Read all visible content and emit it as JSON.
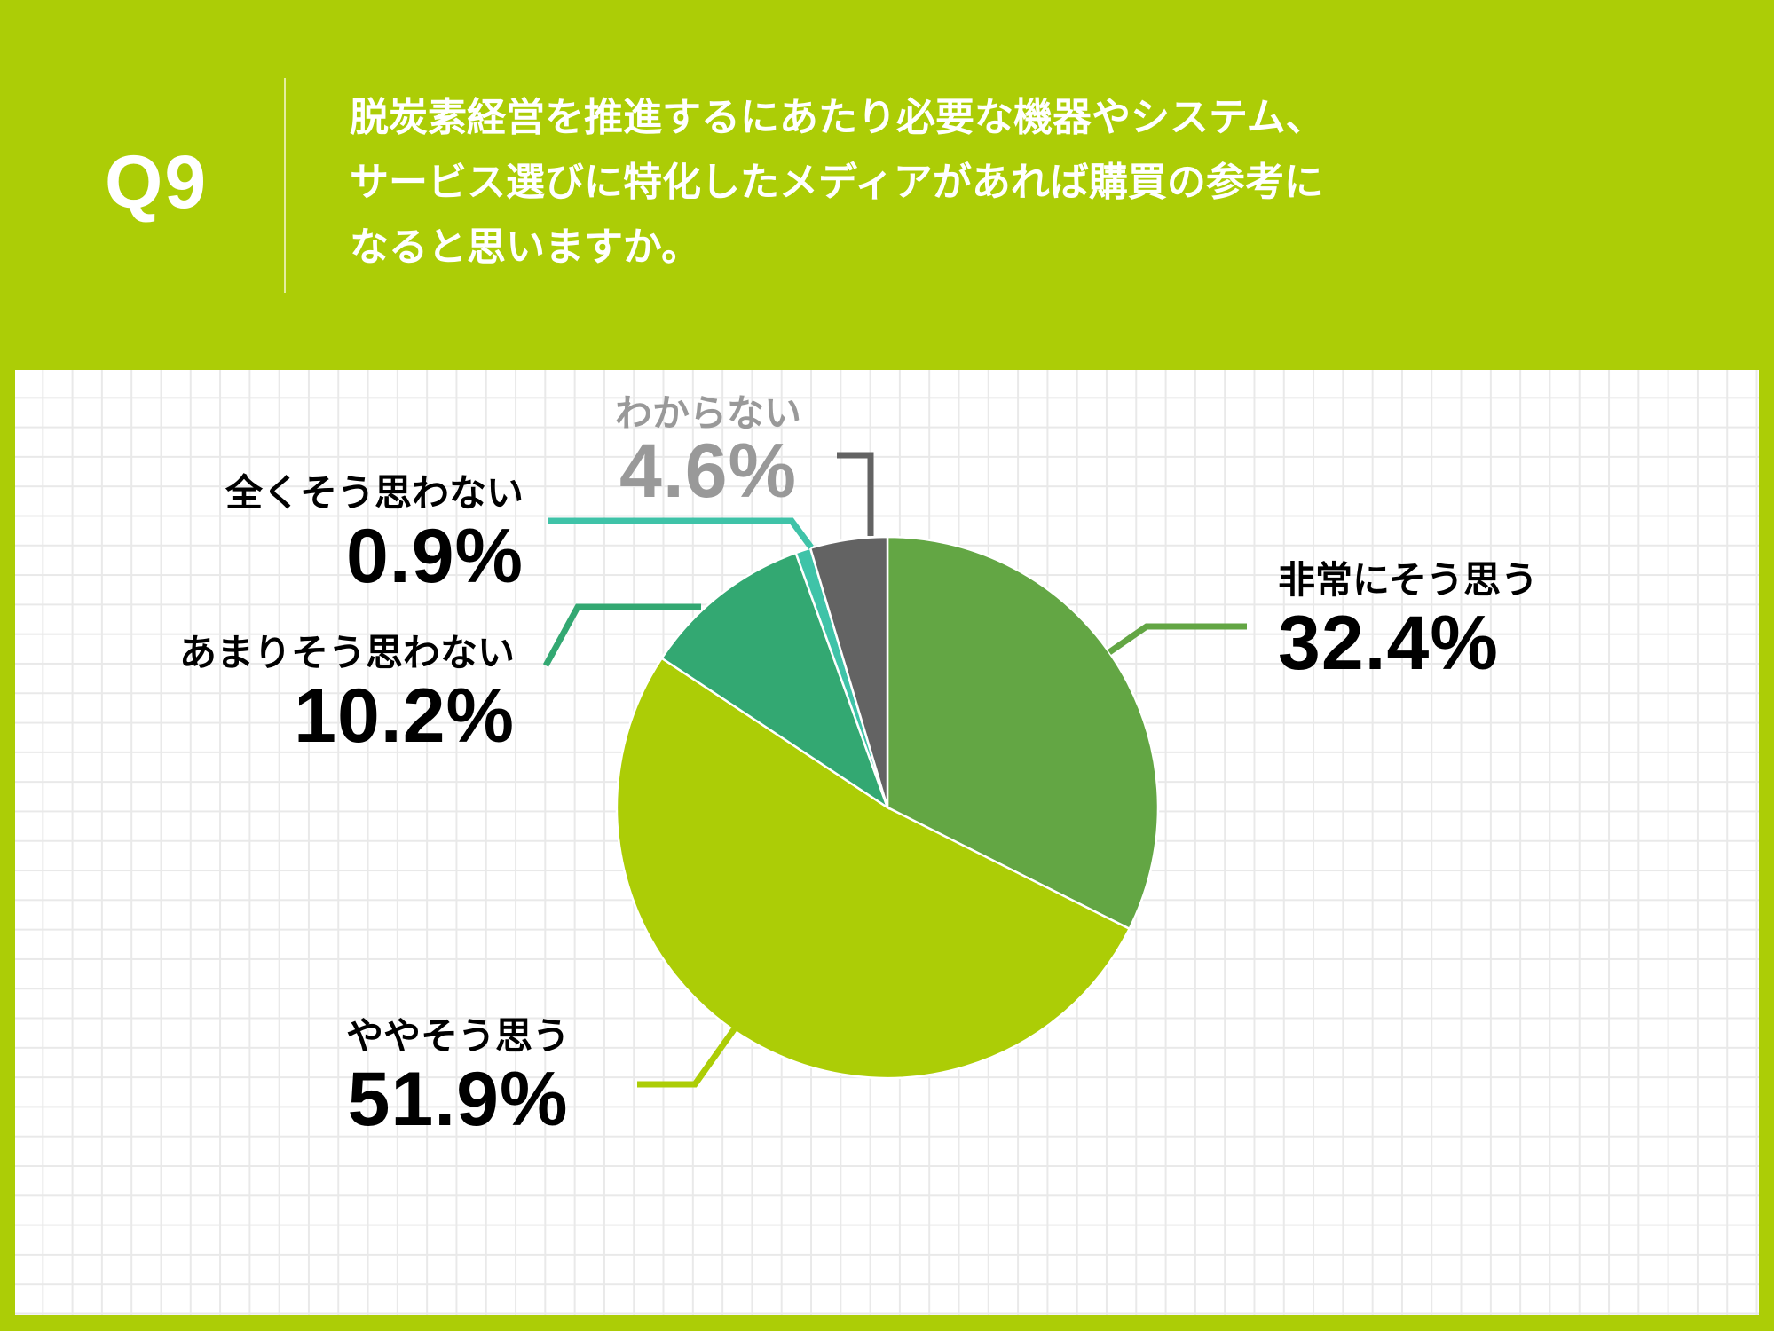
{
  "header": {
    "question_number": "Q9",
    "question_lines": [
      "脱炭素経営を推進するにあたり必要な機器やシステム、",
      "サービス選びに特化したメディアがあれば購買の参考に",
      "なると思いますか。"
    ]
  },
  "colors": {
    "background": "#accd06",
    "very_agree": "#63a644",
    "somewhat_agree": "#accd06",
    "not_really": "#33a872",
    "not_at_all": "#3fc3a8",
    "dont_know": "#636363",
    "dont_know_text": "#999999"
  },
  "labels": {
    "very_agree": {
      "name": "非常にそう思う",
      "pct": "32.4%"
    },
    "somewhat_agree": {
      "name": "ややそう思う",
      "pct": "51.9%"
    },
    "not_really": {
      "name": "あまりそう思わない",
      "pct": "10.2%"
    },
    "not_at_all": {
      "name": "全くそう思わない",
      "pct": "0.9%"
    },
    "dont_know": {
      "name": "わからない",
      "pct": "4.6%"
    }
  },
  "chart_data": {
    "type": "pie",
    "title": "Q9 脱炭素経営を推進するにあたり必要な機器やシステム、サービス選びに特化したメディアがあれば購買の参考になると思いますか。",
    "categories": [
      "非常にそう思う",
      "ややそう思う",
      "あまりそう思わない",
      "全くそう思わない",
      "わからない"
    ],
    "values": [
      32.4,
      51.9,
      10.2,
      0.9,
      4.6
    ],
    "unit": "%",
    "start_angle": "12 o'clock, clockwise",
    "colors": [
      "#63a644",
      "#accd06",
      "#33a872",
      "#3fc3a8",
      "#636363"
    ],
    "legend": "none (direct labels with leader lines)"
  }
}
